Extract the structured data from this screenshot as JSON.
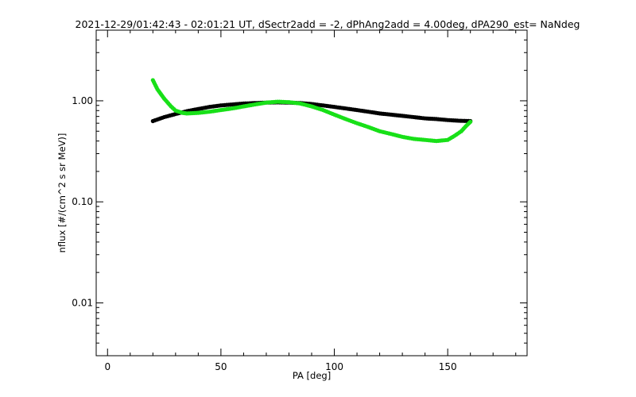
{
  "chart_data": {
    "type": "scatter",
    "title": "2021-12-29/01:42:43 - 02:01:21 UT, dSectr2add = -2, dPhAng2add = 4.00deg, dPA290_est=   NaNdeg",
    "xlabel": "PA [deg]",
    "ylabel": "nflux [#/(cm^2 s sr MeV)]",
    "xlim": [
      -5,
      185
    ],
    "ylim": [
      0.003,
      5
    ],
    "yscale": "log",
    "x_ticks": [
      {
        "value": 0,
        "label": "0"
      },
      {
        "value": 50,
        "label": "50"
      },
      {
        "value": 100,
        "label": "100"
      },
      {
        "value": 150,
        "label": "150"
      }
    ],
    "y_ticks": [
      {
        "value": 0.01,
        "label": "0.01"
      },
      {
        "value": 0.1,
        "label": "0.10"
      },
      {
        "value": 1,
        "label": "1.00"
      }
    ],
    "grid": false,
    "legend": "none",
    "series": [
      {
        "color": "#000000",
        "x": [
          20,
          25,
          30,
          35,
          40,
          45,
          50,
          55,
          60,
          65,
          70,
          75,
          80,
          85,
          90,
          95,
          100,
          105,
          110,
          115,
          120,
          125,
          130,
          135,
          140,
          145,
          150,
          155,
          160
        ],
        "y": [
          0.63,
          0.69,
          0.74,
          0.79,
          0.83,
          0.87,
          0.9,
          0.92,
          0.94,
          0.95,
          0.96,
          0.965,
          0.96,
          0.95,
          0.93,
          0.9,
          0.87,
          0.84,
          0.81,
          0.78,
          0.75,
          0.73,
          0.71,
          0.69,
          0.67,
          0.66,
          0.645,
          0.635,
          0.63
        ]
      },
      {
        "color": "#18e018",
        "x": [
          20,
          22,
          25,
          28,
          30,
          33,
          35,
          40,
          45,
          50,
          55,
          60,
          65,
          70,
          75,
          80,
          85,
          90,
          95,
          100,
          105,
          110,
          115,
          120,
          125,
          130,
          135,
          140,
          145,
          150,
          153,
          156,
          158,
          160
        ],
        "y": [
          1.6,
          1.3,
          1.05,
          0.88,
          0.8,
          0.76,
          0.75,
          0.76,
          0.78,
          0.81,
          0.84,
          0.88,
          0.92,
          0.96,
          0.98,
          0.97,
          0.94,
          0.88,
          0.81,
          0.73,
          0.66,
          0.6,
          0.55,
          0.5,
          0.47,
          0.44,
          0.42,
          0.41,
          0.4,
          0.41,
          0.45,
          0.5,
          0.56,
          0.62
        ]
      }
    ]
  }
}
